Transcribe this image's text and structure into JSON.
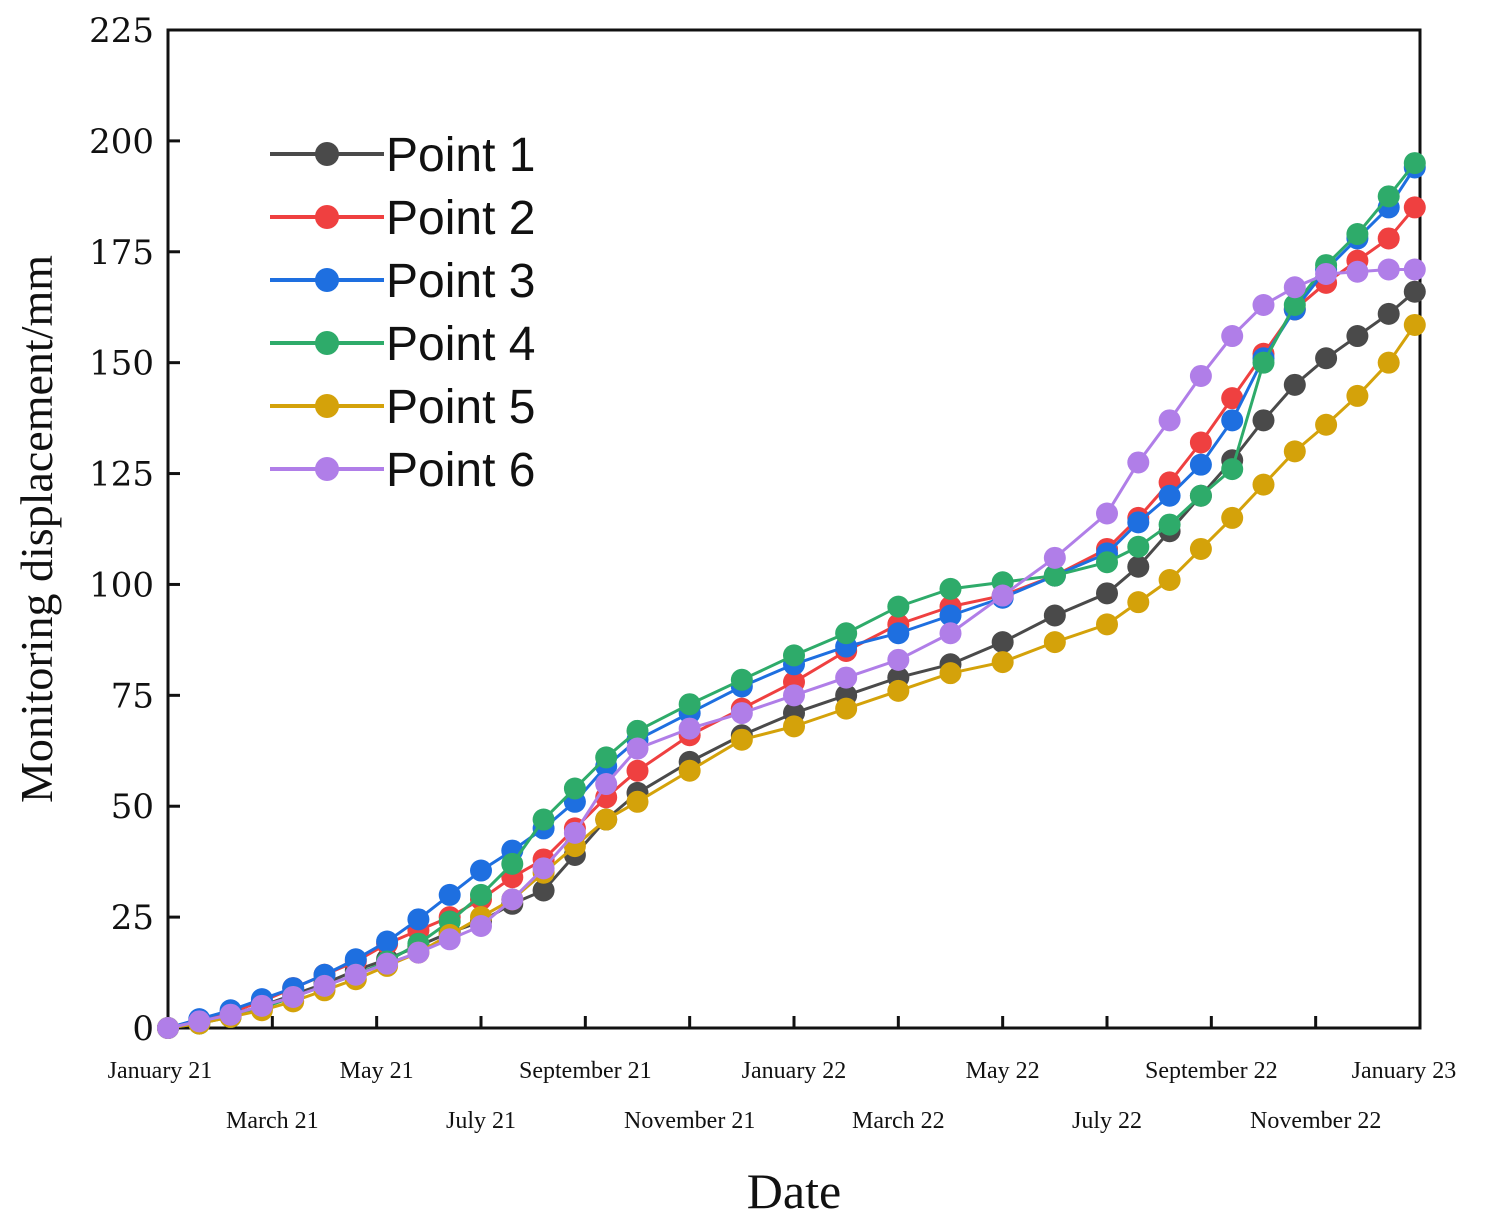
{
  "chart_data": {
    "type": "line",
    "title": "",
    "xlabel": "Date",
    "ylabel": "Monitoring displacement/mm",
    "ylim": [
      0,
      225
    ],
    "yticks": [
      0,
      25,
      50,
      75,
      100,
      125,
      150,
      175,
      200,
      225
    ],
    "xlim": [
      0,
      24
    ],
    "xticks": [
      {
        "value": 0,
        "label": "January 21"
      },
      {
        "value": 2,
        "label": "March 21"
      },
      {
        "value": 4,
        "label": "May 21"
      },
      {
        "value": 6,
        "label": "July 21"
      },
      {
        "value": 8,
        "label": "September 21"
      },
      {
        "value": 10,
        "label": "November 21"
      },
      {
        "value": 12,
        "label": "January 22"
      },
      {
        "value": 14,
        "label": "March 22"
      },
      {
        "value": 16,
        "label": "May 22"
      },
      {
        "value": 18,
        "label": "July 22"
      },
      {
        "value": 20,
        "label": "September 22"
      },
      {
        "value": 22,
        "label": "November 22"
      },
      {
        "value": 24,
        "label": "January 23"
      }
    ],
    "legend_position": "top-left",
    "grid": false,
    "series": [
      {
        "name": "Point 1",
        "color": "#4a4a4a",
        "x": [
          0,
          0.6,
          1.2,
          1.8,
          2.4,
          3.0,
          3.6,
          4.2,
          4.8,
          5.4,
          6.0,
          6.6,
          7.2,
          7.8,
          8.4,
          9.0,
          10.0,
          11.0,
          12.0,
          13.0,
          14.0,
          15.0,
          16.0,
          17.0,
          18.0,
          18.6,
          19.2,
          19.8,
          20.4,
          21.0,
          21.6,
          22.2,
          22.8,
          23.4,
          23.9
        ],
        "values": [
          0,
          1.5,
          3,
          5,
          7.5,
          10,
          13,
          15.5,
          18.5,
          21.5,
          24,
          28,
          31,
          39,
          47,
          53,
          60,
          66,
          71,
          75,
          79,
          82,
          87,
          93,
          98,
          104,
          112,
          120,
          128,
          137,
          145,
          151,
          156,
          161,
          166
        ]
      },
      {
        "name": "Point 2",
        "color": "#ef4040",
        "x": [
          0,
          0.6,
          1.2,
          1.8,
          2.4,
          3.0,
          3.6,
          4.2,
          4.8,
          5.4,
          6.0,
          6.6,
          7.2,
          7.8,
          8.4,
          9.0,
          10.0,
          11.0,
          12.0,
          13.0,
          14.0,
          15.0,
          16.0,
          17.0,
          18.0,
          18.6,
          19.2,
          19.8,
          20.4,
          21.0,
          21.6,
          22.2,
          22.8,
          23.4,
          23.9
        ],
        "values": [
          0,
          1.5,
          3.5,
          6,
          9,
          12,
          15,
          19,
          22,
          25,
          29,
          34,
          38,
          45,
          52,
          58,
          66,
          72,
          78,
          85,
          91,
          95,
          97.5,
          102,
          108,
          115,
          123,
          132,
          142,
          152,
          162,
          168,
          173,
          178,
          185
        ]
      },
      {
        "name": "Point 3",
        "color": "#1e6fe0",
        "x": [
          0,
          0.6,
          1.2,
          1.8,
          2.4,
          3.0,
          3.6,
          4.2,
          4.8,
          5.4,
          6.0,
          6.6,
          7.2,
          7.8,
          8.4,
          9.0,
          10.0,
          11.0,
          12.0,
          13.0,
          14.0,
          15.0,
          16.0,
          17.0,
          18.0,
          18.6,
          19.2,
          19.8,
          20.4,
          21.0,
          21.6,
          22.2,
          22.8,
          23.4,
          23.9
        ],
        "values": [
          0,
          2,
          4,
          6.5,
          9,
          12,
          15.5,
          19.5,
          24.5,
          30,
          35.5,
          40,
          45,
          51,
          59,
          65,
          71,
          77,
          82,
          86,
          89,
          93,
          97,
          102,
          107,
          114,
          120,
          127,
          137,
          151,
          162,
          171,
          178,
          185,
          194
        ]
      },
      {
        "name": "Point 4",
        "color": "#2eab6a",
        "x": [
          0,
          0.6,
          1.2,
          1.8,
          2.4,
          3.0,
          3.6,
          4.2,
          4.8,
          5.4,
          6.0,
          6.6,
          7.2,
          7.8,
          8.4,
          9.0,
          10.0,
          11.0,
          12.0,
          13.0,
          14.0,
          15.0,
          16.0,
          17.0,
          18.0,
          18.6,
          19.2,
          19.8,
          20.4,
          21.0,
          21.6,
          22.2,
          22.8,
          23.4,
          23.9
        ],
        "values": [
          0,
          1,
          2.5,
          4.5,
          7,
          9.5,
          12,
          15,
          19,
          24,
          30,
          37,
          47,
          54,
          61,
          67,
          73,
          78.5,
          84,
          89,
          95,
          99,
          100.5,
          102,
          105,
          108.5,
          113.5,
          120,
          126,
          150,
          163,
          172,
          179,
          187.5,
          195
        ]
      },
      {
        "name": "Point 5",
        "color": "#d4a20a",
        "x": [
          0,
          0.6,
          1.2,
          1.8,
          2.4,
          3.0,
          3.6,
          4.2,
          4.8,
          5.4,
          6.0,
          6.6,
          7.2,
          7.8,
          8.4,
          9.0,
          10.0,
          11.0,
          12.0,
          13.0,
          14.0,
          15.0,
          16.0,
          17.0,
          18.0,
          18.6,
          19.2,
          19.8,
          20.4,
          21.0,
          21.6,
          22.2,
          22.8,
          23.4,
          23.9
        ],
        "values": [
          0,
          1,
          2.5,
          4,
          6,
          8.5,
          11,
          14,
          17,
          21,
          25,
          29,
          35,
          41,
          47,
          51,
          58,
          65,
          68,
          72,
          76,
          80,
          82.5,
          87,
          91,
          96,
          101,
          108,
          115,
          122.5,
          130,
          136,
          142.5,
          150,
          158.5
        ]
      },
      {
        "name": "Point 6",
        "color": "#b07ee8",
        "x": [
          0,
          0.6,
          1.2,
          1.8,
          2.4,
          3.0,
          3.6,
          4.2,
          4.8,
          5.4,
          6.0,
          6.6,
          7.2,
          7.8,
          8.4,
          9.0,
          10.0,
          11.0,
          12.0,
          13.0,
          14.0,
          15.0,
          16.0,
          17.0,
          18.0,
          18.6,
          19.2,
          19.8,
          20.4,
          21.0,
          21.6,
          22.2,
          22.8,
          23.4,
          23.9
        ],
        "values": [
          0,
          1.5,
          3,
          5,
          7,
          9.5,
          12,
          14.5,
          17,
          20,
          23,
          29,
          36,
          44,
          55,
          63,
          67.5,
          71,
          75,
          79,
          83,
          89,
          97.5,
          106,
          116,
          127.5,
          137,
          147,
          156,
          163,
          167,
          170,
          170.5,
          171,
          171
        ]
      }
    ]
  }
}
